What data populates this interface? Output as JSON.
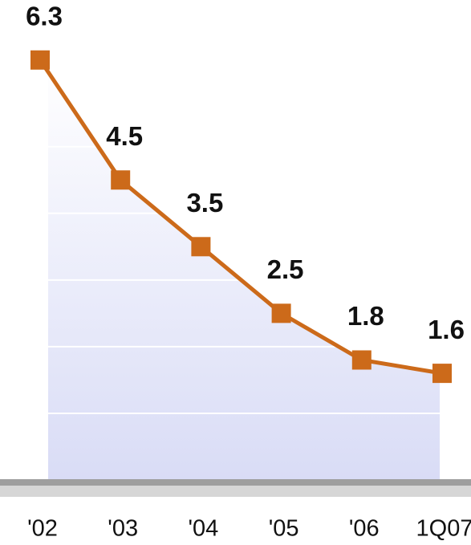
{
  "chart_data": {
    "type": "line",
    "categories": [
      "'02",
      "'03",
      "'04",
      "'05",
      "'06",
      "1Q07"
    ],
    "series": [
      {
        "name": null,
        "color": "#cc6a1a",
        "values": [
          6.3,
          4.5,
          3.5,
          2.5,
          1.8,
          1.6
        ]
      }
    ],
    "ylim": [
      0,
      7.2
    ],
    "yticks": [
      1,
      2,
      3,
      4,
      5
    ],
    "grid": true
  }
}
